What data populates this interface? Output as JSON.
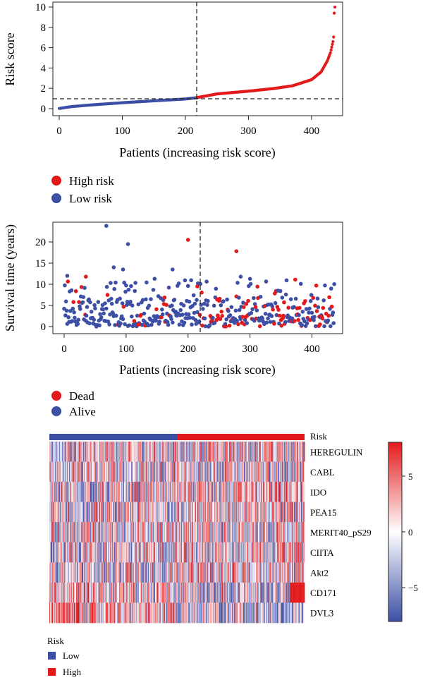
{
  "colors": {
    "high": "#e31a1c",
    "low": "#3c4fa5",
    "heat_high": "#e31a1c",
    "heat_low": "#3c4fa5",
    "axis": "#222222"
  },
  "chart_data": [
    {
      "type": "scatter",
      "panel": "risk-score",
      "ylabel": "Risk score",
      "xlabel": "Patients (increasing risk score)",
      "xlim": [
        0,
        437
      ],
      "ylim": [
        0,
        10
      ],
      "xticks": [
        "0",
        "100",
        "200",
        "300",
        "400"
      ],
      "yticks": [
        "0",
        "2",
        "4",
        "6",
        "8",
        "10"
      ],
      "n_patients": 437,
      "cutoff_index": 218,
      "cutoff_score": 1.08,
      "curve_anchors": [
        [
          0,
          0.02
        ],
        [
          20,
          0.2
        ],
        [
          50,
          0.36
        ],
        [
          100,
          0.58
        ],
        [
          150,
          0.77
        ],
        [
          200,
          0.95
        ],
        [
          218,
          1.08
        ],
        [
          250,
          1.45
        ],
        [
          300,
          1.72
        ],
        [
          340,
          1.98
        ],
        [
          370,
          2.25
        ],
        [
          400,
          2.85
        ],
        [
          415,
          3.6
        ],
        [
          425,
          4.7
        ],
        [
          430,
          5.5
        ],
        [
          434,
          6.6
        ],
        [
          436,
          7.5
        ],
        [
          437,
          10.0
        ]
      ],
      "series": [
        {
          "name": "High risk",
          "color": "#e31a1c"
        },
        {
          "name": "Low risk",
          "color": "#3c4fa5"
        }
      ],
      "legend": [
        "High risk",
        "Low risk"
      ]
    },
    {
      "type": "scatter",
      "panel": "survival",
      "ylabel": "Survival time (years)",
      "xlabel": "Patients (increasing risk score)",
      "xlim": [
        0,
        437
      ],
      "ylim": [
        0,
        24
      ],
      "xticks": [
        "0",
        "100",
        "200",
        "300",
        "400"
      ],
      "yticks": [
        "0",
        "5",
        "10",
        "15",
        "20"
      ],
      "cutoff_index": 218,
      "notable_points": [
        {
          "x": 68,
          "y": 23.8,
          "status": "Alive"
        },
        {
          "x": 103,
          "y": 19.5,
          "status": "Alive"
        },
        {
          "x": 200,
          "y": 20.5,
          "status": "Dead"
        },
        {
          "x": 278,
          "y": 17.8,
          "status": "Dead"
        },
        {
          "x": 35,
          "y": 11.8,
          "status": "Dead"
        },
        {
          "x": 5,
          "y": 12.0,
          "status": "Alive"
        },
        {
          "x": 80,
          "y": 14.0,
          "status": "Alive"
        },
        {
          "x": 95,
          "y": 13.5,
          "status": "Alive"
        },
        {
          "x": 175,
          "y": 13.5,
          "status": "Alive"
        },
        {
          "x": 285,
          "y": 11.8,
          "status": "Alive"
        },
        {
          "x": 215,
          "y": 9.5,
          "status": "Dead"
        }
      ],
      "series": [
        {
          "name": "Dead",
          "color": "#e31a1c"
        },
        {
          "name": "Alive",
          "color": "#3c4fa5"
        }
      ],
      "legend": [
        "Dead",
        "Alive"
      ]
    },
    {
      "type": "heatmap",
      "panel": "expression",
      "annotation_label": "Risk",
      "rows": [
        "HEREGULIN",
        "CABL",
        "IDO",
        "PEA15",
        "MERIT40_pS29",
        "CIITA",
        "Akt2",
        "CD171",
        "DVL3"
      ],
      "columns": 437,
      "low_columns": 218,
      "colorbar_ticks": [
        "5",
        "0",
        "−5"
      ],
      "colorbar_range": [
        -8,
        8
      ],
      "row_trend": [
        0.15,
        -0.05,
        0.3,
        0.25,
        -0.15,
        0.35,
        0.3,
        -0.55,
        -0.85
      ],
      "legend_title": "Risk",
      "legend": [
        "Low",
        "High"
      ]
    }
  ]
}
